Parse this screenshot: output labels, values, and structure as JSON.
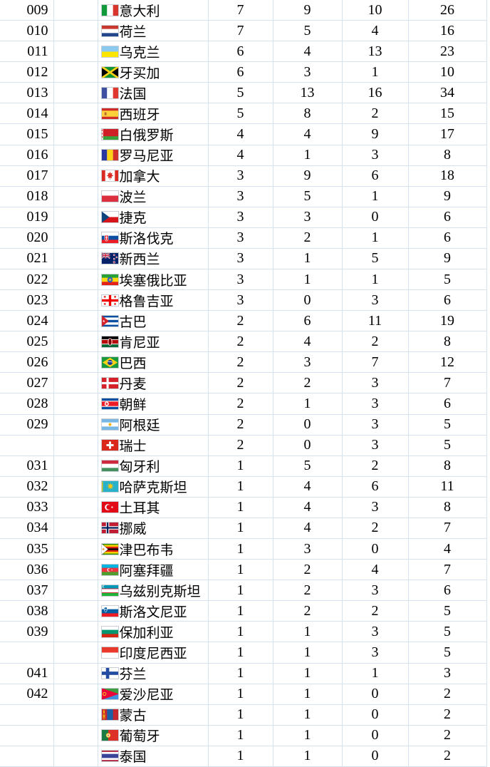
{
  "colors": {
    "background": "#ffffff",
    "gridline": "#d6e2ee",
    "text": "#000000"
  },
  "table": {
    "rows": [
      {
        "rank": "009",
        "flag": "italy",
        "country": "意大利",
        "gold": "7",
        "silver": "9",
        "bronze": "10",
        "total": "26"
      },
      {
        "rank": "010",
        "flag": "netherlands",
        "country": "荷兰",
        "gold": "7",
        "silver": "5",
        "bronze": "4",
        "total": "16"
      },
      {
        "rank": "011",
        "flag": "ukraine",
        "country": "乌克兰",
        "gold": "6",
        "silver": "4",
        "bronze": "13",
        "total": "23"
      },
      {
        "rank": "012",
        "flag": "jamaica",
        "country": "牙买加",
        "gold": "6",
        "silver": "3",
        "bronze": "1",
        "total": "10"
      },
      {
        "rank": "013",
        "flag": "france",
        "country": "法国",
        "gold": "5",
        "silver": "13",
        "bronze": "16",
        "total": "34"
      },
      {
        "rank": "014",
        "flag": "spain",
        "country": "西班牙",
        "gold": "5",
        "silver": "8",
        "bronze": "2",
        "total": "15"
      },
      {
        "rank": "015",
        "flag": "belarus",
        "country": "白俄罗斯",
        "gold": "4",
        "silver": "4",
        "bronze": "9",
        "total": "17"
      },
      {
        "rank": "016",
        "flag": "romania",
        "country": "罗马尼亚",
        "gold": "4",
        "silver": "1",
        "bronze": "3",
        "total": "8"
      },
      {
        "rank": "017",
        "flag": "canada",
        "country": "加拿大",
        "gold": "3",
        "silver": "9",
        "bronze": "6",
        "total": "18"
      },
      {
        "rank": "018",
        "flag": "poland",
        "country": "波兰",
        "gold": "3",
        "silver": "5",
        "bronze": "1",
        "total": "9"
      },
      {
        "rank": "019",
        "flag": "czech",
        "country": "捷克",
        "gold": "3",
        "silver": "3",
        "bronze": "0",
        "total": "6"
      },
      {
        "rank": "020",
        "flag": "slovakia",
        "country": "斯洛伐克",
        "gold": "3",
        "silver": "2",
        "bronze": "1",
        "total": "6"
      },
      {
        "rank": "021",
        "flag": "new-zealand",
        "country": "新西兰",
        "gold": "3",
        "silver": "1",
        "bronze": "5",
        "total": "9"
      },
      {
        "rank": "022",
        "flag": "ethiopia",
        "country": "埃塞俄比亚",
        "gold": "3",
        "silver": "1",
        "bronze": "1",
        "total": "5"
      },
      {
        "rank": "023",
        "flag": "georgia",
        "country": "格鲁吉亚",
        "gold": "3",
        "silver": "0",
        "bronze": "3",
        "total": "6"
      },
      {
        "rank": "024",
        "flag": "cuba",
        "country": "古巴",
        "gold": "2",
        "silver": "6",
        "bronze": "11",
        "total": "19"
      },
      {
        "rank": "025",
        "flag": "kenya",
        "country": "肯尼亚",
        "gold": "2",
        "silver": "4",
        "bronze": "2",
        "total": "8"
      },
      {
        "rank": "026",
        "flag": "brazil",
        "country": "巴西",
        "gold": "2",
        "silver": "3",
        "bronze": "7",
        "total": "12"
      },
      {
        "rank": "027",
        "flag": "denmark",
        "country": "丹麦",
        "gold": "2",
        "silver": "2",
        "bronze": "3",
        "total": "7"
      },
      {
        "rank": "028",
        "flag": "north-korea",
        "country": "朝鲜",
        "gold": "2",
        "silver": "1",
        "bronze": "3",
        "total": "6"
      },
      {
        "rank": "029",
        "flag": "argentina",
        "country": "阿根廷",
        "gold": "2",
        "silver": "0",
        "bronze": "3",
        "total": "5"
      },
      {
        "rank": "",
        "flag": "switzerland",
        "country": "瑞士",
        "gold": "2",
        "silver": "0",
        "bronze": "3",
        "total": "5"
      },
      {
        "rank": "031",
        "flag": "hungary",
        "country": "匈牙利",
        "gold": "1",
        "silver": "5",
        "bronze": "2",
        "total": "8"
      },
      {
        "rank": "032",
        "flag": "kazakhstan",
        "country": "哈萨克斯坦",
        "gold": "1",
        "silver": "4",
        "bronze": "6",
        "total": "11"
      },
      {
        "rank": "033",
        "flag": "turkey",
        "country": "土耳其",
        "gold": "1",
        "silver": "4",
        "bronze": "3",
        "total": "8"
      },
      {
        "rank": "034",
        "flag": "norway",
        "country": "挪威",
        "gold": "1",
        "silver": "4",
        "bronze": "2",
        "total": "7"
      },
      {
        "rank": "035",
        "flag": "zimbabwe",
        "country": "津巴布韦",
        "gold": "1",
        "silver": "3",
        "bronze": "0",
        "total": "4"
      },
      {
        "rank": "036",
        "flag": "azerbaijan",
        "country": "阿塞拜疆",
        "gold": "1",
        "silver": "2",
        "bronze": "4",
        "total": "7"
      },
      {
        "rank": "037",
        "flag": "uzbekistan",
        "country": "乌兹别克斯坦",
        "gold": "1",
        "silver": "2",
        "bronze": "3",
        "total": "6"
      },
      {
        "rank": "038",
        "flag": "slovenia",
        "country": "斯洛文尼亚",
        "gold": "1",
        "silver": "2",
        "bronze": "2",
        "total": "5"
      },
      {
        "rank": "039",
        "flag": "bulgaria",
        "country": "保加利亚",
        "gold": "1",
        "silver": "1",
        "bronze": "3",
        "total": "5"
      },
      {
        "rank": "",
        "flag": "indonesia",
        "country": "印度尼西亚",
        "gold": "1",
        "silver": "1",
        "bronze": "3",
        "total": "5"
      },
      {
        "rank": "041",
        "flag": "finland",
        "country": "芬兰",
        "gold": "1",
        "silver": "1",
        "bronze": "1",
        "total": "3"
      },
      {
        "rank": "042",
        "flag": "eritrea",
        "country": "爱沙尼亚",
        "gold": "1",
        "silver": "1",
        "bronze": "0",
        "total": "2"
      },
      {
        "rank": "",
        "flag": "mongolia",
        "country": "蒙古",
        "gold": "1",
        "silver": "1",
        "bronze": "0",
        "total": "2"
      },
      {
        "rank": "",
        "flag": "portugal",
        "country": "葡萄牙",
        "gold": "1",
        "silver": "1",
        "bronze": "0",
        "total": "2"
      },
      {
        "rank": "",
        "flag": "thailand",
        "country": "泰国",
        "gold": "1",
        "silver": "1",
        "bronze": "0",
        "total": "2"
      }
    ]
  }
}
